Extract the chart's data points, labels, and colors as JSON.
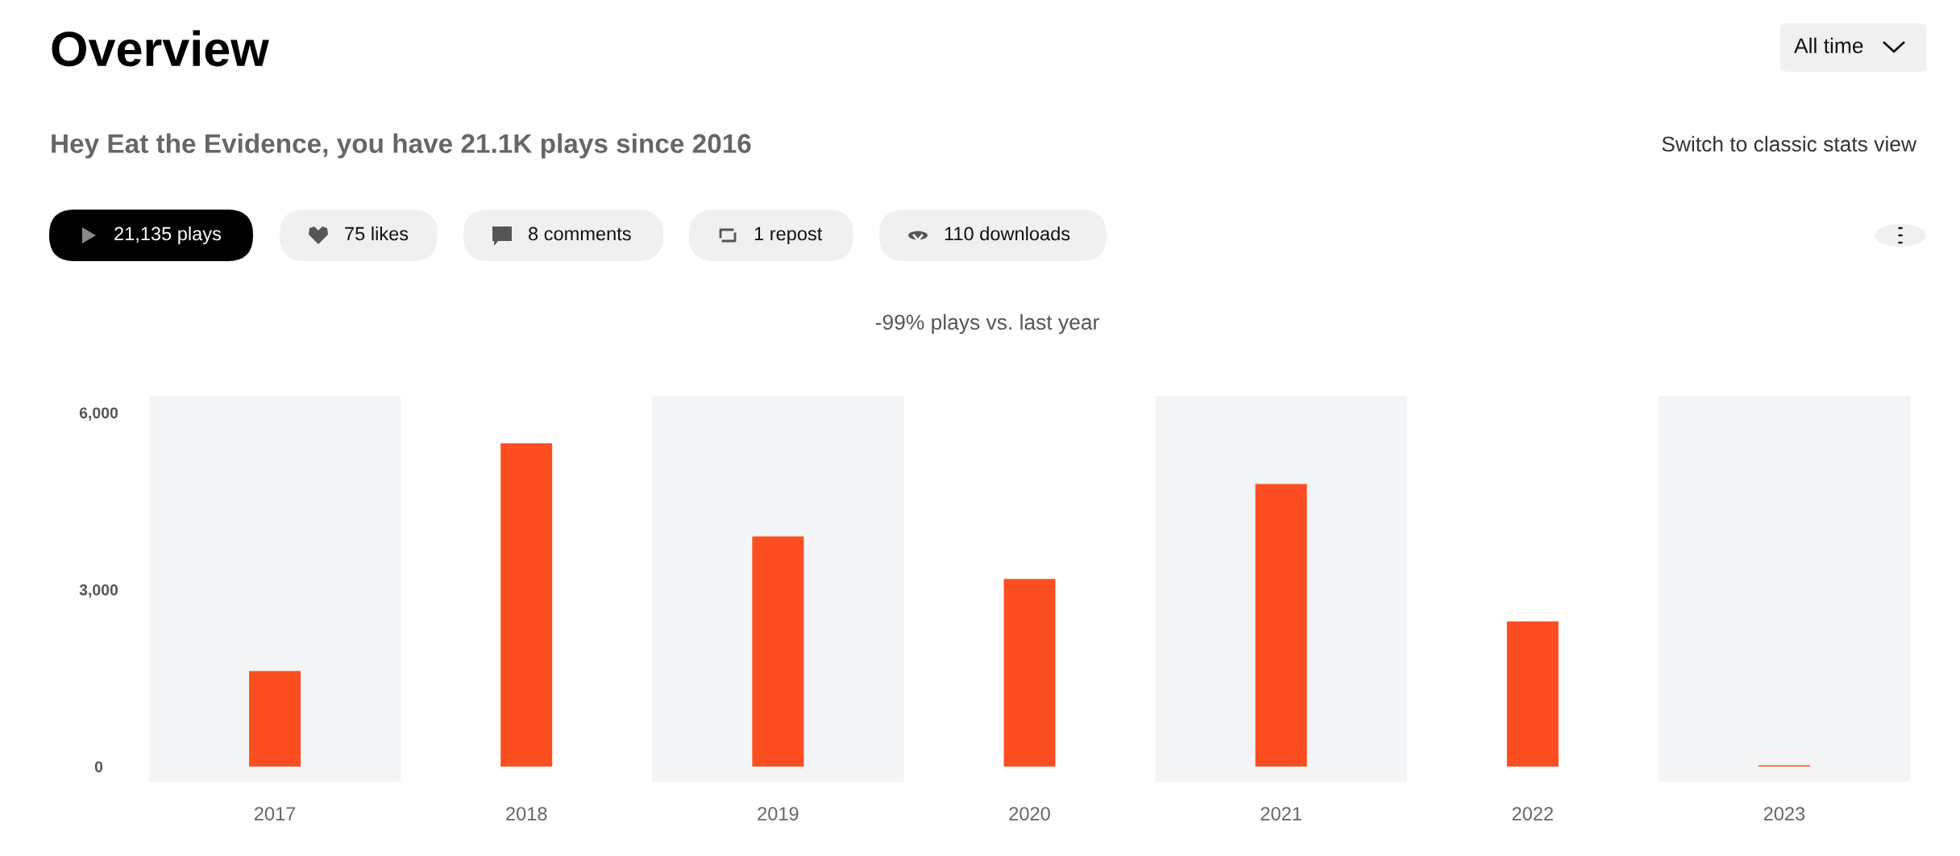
{
  "chart_data": {
    "type": "bar",
    "title": "Overview",
    "subtitle": "Hey Eat the Evidence, you have 21.1K plays since 2016",
    "annotations": [
      "All time",
      "Switch to classic stats view",
      "21,135 plays",
      "75 likes",
      "8 comments",
      "1 repost",
      "110 downloads",
      "-99% plays vs. last year"
    ],
    "categories": [
      "2017",
      "2018",
      "2019",
      "2020",
      "2021",
      "2022",
      "2023"
    ],
    "values": [
      1620,
      5480,
      3900,
      3180,
      4790,
      2460,
      20
    ],
    "color": "#fd4e21",
    "ylim": [
      -260,
      6290
    ],
    "yticks": [
      0,
      {
        "value": 3000,
        "label": "3,000"
      },
      {
        "value": 6000,
        "label": "6,000"
      }
    ],
    "bands": [
      {
        "axis": "x",
        "from": "2017",
        "to": "2017",
        "color": "#f3f4f6"
      },
      {
        "axis": "x",
        "from": "2019",
        "to": "2019",
        "color": "#f3f4f6"
      },
      {
        "axis": "x",
        "from": "2021",
        "to": "2021",
        "color": "#f3f4f6"
      },
      {
        "axis": "x",
        "from": "2023",
        "to": "2023",
        "color": "#f3f4f6"
      }
    ],
    "grid": false,
    "legend": false
  }
}
